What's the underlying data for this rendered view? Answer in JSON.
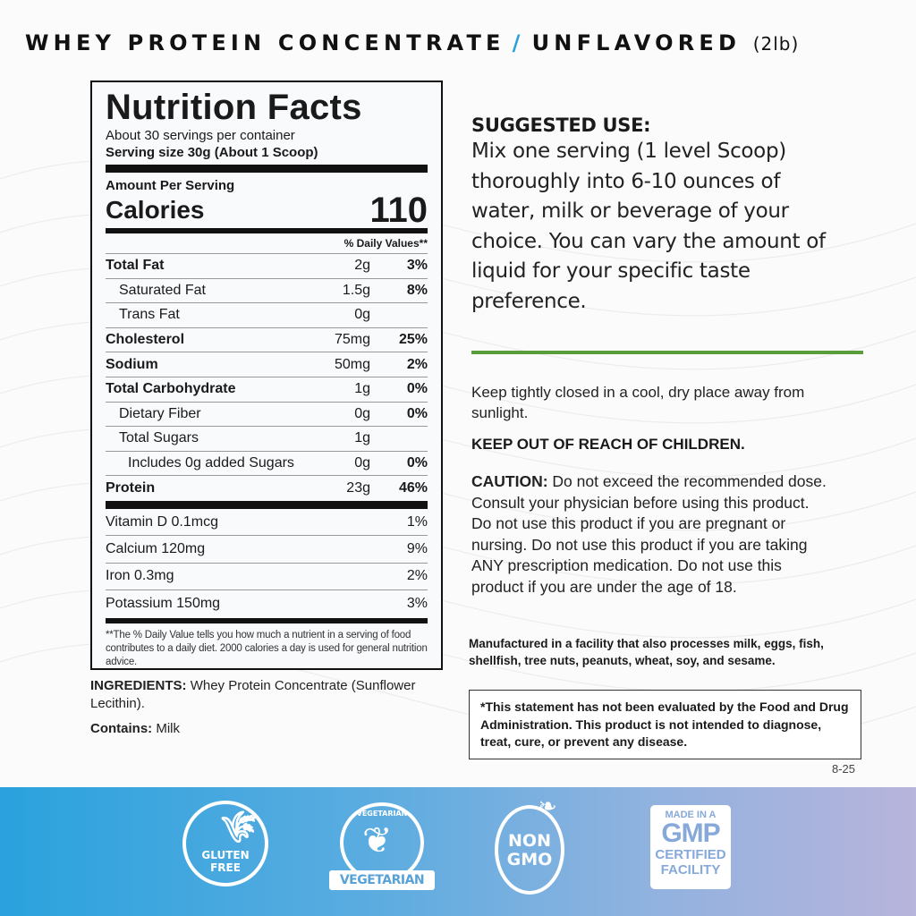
{
  "header": {
    "product": "WHEY PROTEIN CONCENTRATE",
    "separator": "/",
    "flavor": "UNFLAVORED",
    "size": "(2lb)",
    "accent_color": "#2a9fd8"
  },
  "nutrition": {
    "title": "Nutrition Facts",
    "servings_per_container": "About 30 servings per container",
    "serving_size": "Serving size 30g (About 1 Scoop)",
    "amount_per_serving": "Amount Per Serving",
    "calories_label": "Calories",
    "calories": "110",
    "dv_header": "% Daily Values**",
    "rows": [
      {
        "name": "Total Fat",
        "amount": "2g",
        "dv": "3%"
      },
      {
        "name": "Saturated Fat",
        "amount": "1.5g",
        "dv": "8%"
      },
      {
        "name": "Trans Fat",
        "amount": "0g",
        "dv": ""
      },
      {
        "name": "Cholesterol",
        "amount": "75mg",
        "dv": "25%"
      },
      {
        "name": "Sodium",
        "amount": "50mg",
        "dv": "2%"
      },
      {
        "name": "Total Carbohydrate",
        "amount": "1g",
        "dv": "0%"
      },
      {
        "name": "Dietary Fiber",
        "amount": "0g",
        "dv": "0%"
      },
      {
        "name": "Total Sugars",
        "amount": "1g",
        "dv": ""
      },
      {
        "name": "Includes 0g added Sugars",
        "amount": "0g",
        "dv": "0%"
      },
      {
        "name": "Protein",
        "amount": "23g",
        "dv": "46%"
      }
    ],
    "vitamins": [
      {
        "name": "Vitamin D 0.1mcg",
        "dv": "1%"
      },
      {
        "name": "Calcium 120mg",
        "dv": "9%"
      },
      {
        "name": "Iron 0.3mg",
        "dv": "2%"
      },
      {
        "name": "Potassium 150mg",
        "dv": "3%"
      }
    ],
    "footnote": "**The % Daily Value tells you how much a nutrient in a  serving of food contributes to a daily diet. 2000 calories a day is used for general nutrition advice."
  },
  "ingredients": {
    "label": "INGREDIENTS:",
    "text": "Whey Protein Concentrate (Sunflower Lecithin).",
    "contains_label": "Contains:",
    "contains": "Milk"
  },
  "suggested_use": {
    "heading": "SUGGESTED USE:",
    "text": "Mix one serving (1 level Scoop) thoroughly into 6-10 ounces of water, milk or beverage of your choice. You can vary the amount of liquid for your specific taste preference."
  },
  "divider_color": "#5a9e3c",
  "storage": "Keep tightly closed in a cool, dry place away from sunlight.",
  "children_warning": "KEEP OUT OF REACH OF CHILDREN.",
  "caution": {
    "label": "CAUTION:",
    "text": "Do not exceed the recommended dose. Consult your physician before using this product. Do not use this product if you are pregnant or nursing. Do not use this product if you are taking ANY prescription medication. Do not use this product if you are under the age of 18."
  },
  "allergen_note": "Manufactured in a facility that also processes milk, eggs, fish, shellfish, tree nuts, peanuts, wheat, soy, and sesame.",
  "disclaimer": "*This statement has not been evaluated by the Food and Drug Administration. This product is not intended to diagnose, treat, cure, or prevent any disease.",
  "code": "8-25",
  "badges": {
    "gluten_free": "GLUTEN FREE",
    "vegetarian_top": "VEGETARIAN",
    "vegetarian": "VEGETARIAN",
    "non_gmo_1": "NON",
    "non_gmo_2": "GMO",
    "gmp_1": "MADE IN A",
    "gmp_2": "GMP",
    "gmp_3": "CERTIFIED",
    "gmp_4": "FACILITY"
  }
}
